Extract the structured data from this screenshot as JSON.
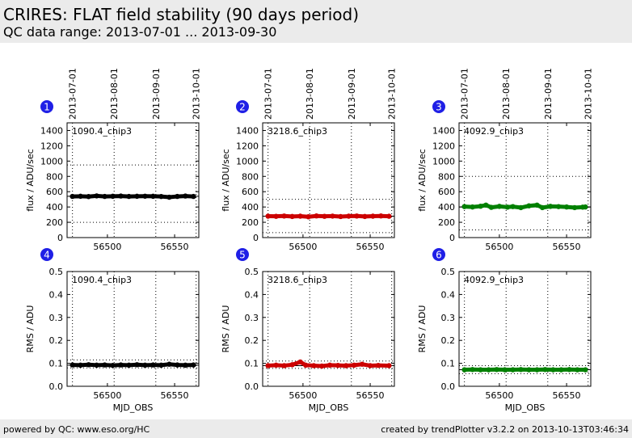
{
  "header": {
    "title": "CRIRES: FLAT field stability (90 days period)",
    "subtitle": "QC data range: 2013-07-01 ... 2013-09-30"
  },
  "footer": {
    "left": "powered by QC: www.eso.org/HC",
    "right": "created by trendPlotter v3.2.2 on 2013-10-13T03:46:34"
  },
  "date_ticks": [
    "2013-07-01",
    "2013-08-01",
    "2013-09-01",
    "2013-10-01"
  ],
  "date_ticks_mjd": [
    56474,
    56505,
    56536,
    56566
  ],
  "x_ticks": [
    56500,
    56550
  ],
  "x_range": [
    56470,
    56568
  ],
  "xlabel": "MJD_OBS",
  "chart_data": [
    {
      "type": "scatter",
      "number": "1",
      "label": "1090.4_chip3",
      "color": "#000000",
      "ylabel": "flux / ADU/sec",
      "ylim": [
        0,
        1500
      ],
      "yticks": [
        "0",
        "200",
        "400",
        "600",
        "800",
        "1000",
        "1200",
        "1400"
      ],
      "ytick_values": [
        0,
        200,
        400,
        600,
        800,
        1000,
        1200,
        1400
      ],
      "reference_lines": [
        200,
        950
      ],
      "mean_line": 540,
      "x_start": 56474,
      "x_end": 56564,
      "points": [
        [
          56474,
          538
        ],
        [
          56480,
          540
        ],
        [
          56486,
          536
        ],
        [
          56492,
          545
        ],
        [
          56498,
          538
        ],
        [
          56504,
          540
        ],
        [
          56510,
          543
        ],
        [
          56516,
          538
        ],
        [
          56522,
          540
        ],
        [
          56528,
          541
        ],
        [
          56534,
          540
        ],
        [
          56540,
          537
        ],
        [
          56546,
          528
        ],
        [
          56552,
          538
        ],
        [
          56558,
          543
        ],
        [
          56564,
          538
        ]
      ]
    },
    {
      "type": "scatter",
      "number": "2",
      "label": "3218.6_chip3",
      "color": "#cc0000",
      "ylabel": "flux / ADU/sec",
      "ylim": [
        0,
        1500
      ],
      "yticks": [
        "0",
        "200",
        "400",
        "600",
        "800",
        "1000",
        "1200",
        "1400"
      ],
      "ytick_values": [
        0,
        200,
        400,
        600,
        800,
        1000,
        1200,
        1400
      ],
      "reference_lines": [
        65,
        500
      ],
      "mean_line": 280,
      "x_start": 56474,
      "x_end": 56564,
      "points": [
        [
          56474,
          280
        ],
        [
          56480,
          278
        ],
        [
          56486,
          282
        ],
        [
          56492,
          276
        ],
        [
          56498,
          280
        ],
        [
          56504,
          272
        ],
        [
          56510,
          283
        ],
        [
          56516,
          278
        ],
        [
          56522,
          281
        ],
        [
          56528,
          275
        ],
        [
          56534,
          280
        ],
        [
          56540,
          282
        ],
        [
          56546,
          276
        ],
        [
          56552,
          280
        ],
        [
          56558,
          283
        ],
        [
          56564,
          279
        ]
      ]
    },
    {
      "type": "scatter",
      "number": "3",
      "label": "4092.9_chip3",
      "color": "#008000",
      "ylabel": "flux / ADU/sec",
      "ylim": [
        0,
        1500
      ],
      "yticks": [
        "0",
        "200",
        "400",
        "600",
        "800",
        "1000",
        "1200",
        "1400"
      ],
      "ytick_values": [
        0,
        200,
        400,
        600,
        800,
        1000,
        1200,
        1400
      ],
      "reference_lines": [
        100,
        800
      ],
      "mean_line": 400,
      "x_start": 56474,
      "x_end": 56564,
      "points": [
        [
          56474,
          405
        ],
        [
          56480,
          400
        ],
        [
          56486,
          410
        ],
        [
          56490,
          425
        ],
        [
          56494,
          395
        ],
        [
          56500,
          408
        ],
        [
          56506,
          398
        ],
        [
          56510,
          405
        ],
        [
          56516,
          392
        ],
        [
          56522,
          415
        ],
        [
          56528,
          425
        ],
        [
          56532,
          392
        ],
        [
          56538,
          408
        ],
        [
          56544,
          405
        ],
        [
          56550,
          400
        ],
        [
          56556,
          392
        ],
        [
          56562,
          398
        ],
        [
          56564,
          400
        ]
      ]
    },
    {
      "type": "scatter",
      "number": "4",
      "label": "1090.4_chip3",
      "color": "#000000",
      "ylabel": "RMS / ADU",
      "ylim": [
        0,
        0.5
      ],
      "yticks": [
        "0.0",
        "0.1",
        "0.2",
        "0.3",
        "0.4",
        "0.5"
      ],
      "ytick_values": [
        0,
        0.1,
        0.2,
        0.3,
        0.4,
        0.5
      ],
      "reference_lines": [
        0.08,
        0.115
      ],
      "mean_line": 0.092,
      "x_start": 56474,
      "x_end": 56564,
      "points": [
        [
          56474,
          0.093
        ],
        [
          56480,
          0.092
        ],
        [
          56486,
          0.094
        ],
        [
          56492,
          0.092
        ],
        [
          56498,
          0.093
        ],
        [
          56504,
          0.091
        ],
        [
          56510,
          0.093
        ],
        [
          56516,
          0.092
        ],
        [
          56522,
          0.094
        ],
        [
          56528,
          0.092
        ],
        [
          56534,
          0.093
        ],
        [
          56540,
          0.092
        ],
        [
          56546,
          0.096
        ],
        [
          56552,
          0.093
        ],
        [
          56558,
          0.092
        ],
        [
          56564,
          0.093
        ]
      ]
    },
    {
      "type": "scatter",
      "number": "5",
      "label": "3218.6_chip3",
      "color": "#cc0000",
      "ylabel": "RMS / ADU",
      "ylim": [
        0,
        0.5
      ],
      "yticks": [
        "0.0",
        "0.1",
        "0.2",
        "0.3",
        "0.4",
        "0.5"
      ],
      "ytick_values": [
        0,
        0.1,
        0.2,
        0.3,
        0.4,
        0.5
      ],
      "reference_lines": [
        0.078,
        0.11
      ],
      "mean_line": 0.09,
      "x_start": 56474,
      "x_end": 56564,
      "points": [
        [
          56474,
          0.09
        ],
        [
          56480,
          0.092
        ],
        [
          56486,
          0.09
        ],
        [
          56492,
          0.094
        ],
        [
          56498,
          0.106
        ],
        [
          56502,
          0.092
        ],
        [
          56508,
          0.09
        ],
        [
          56514,
          0.088
        ],
        [
          56520,
          0.092
        ],
        [
          56526,
          0.091
        ],
        [
          56532,
          0.09
        ],
        [
          56538,
          0.092
        ],
        [
          56544,
          0.096
        ],
        [
          56550,
          0.09
        ],
        [
          56556,
          0.091
        ],
        [
          56564,
          0.09
        ]
      ]
    },
    {
      "type": "scatter",
      "number": "6",
      "label": "4092.9_chip3",
      "color": "#008000",
      "ylabel": "RMS / ADU",
      "ylim": [
        0,
        0.5
      ],
      "yticks": [
        "0.0",
        "0.1",
        "0.2",
        "0.3",
        "0.4",
        "0.5"
      ],
      "ytick_values": [
        0,
        0.1,
        0.2,
        0.3,
        0.4,
        0.5
      ],
      "reference_lines": [
        0.055,
        0.09
      ],
      "mean_line": 0.072,
      "x_start": 56474,
      "x_end": 56564,
      "points": [
        [
          56474,
          0.072
        ],
        [
          56480,
          0.073
        ],
        [
          56486,
          0.072
        ],
        [
          56492,
          0.072
        ],
        [
          56498,
          0.073
        ],
        [
          56504,
          0.072
        ],
        [
          56510,
          0.072
        ],
        [
          56516,
          0.073
        ],
        [
          56522,
          0.072
        ],
        [
          56528,
          0.072
        ],
        [
          56534,
          0.073
        ],
        [
          56540,
          0.072
        ],
        [
          56546,
          0.072
        ],
        [
          56552,
          0.073
        ],
        [
          56558,
          0.072
        ],
        [
          56564,
          0.072
        ]
      ]
    }
  ]
}
